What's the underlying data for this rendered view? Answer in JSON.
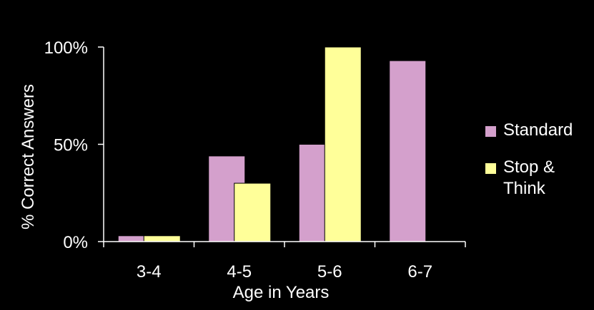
{
  "chart_data": {
    "type": "bar",
    "xlabel": "Age in Years",
    "ylabel": "% Correct Answers",
    "categories": [
      "3-4",
      "4-5",
      "5-6",
      "6-7"
    ],
    "ylim": [
      0,
      100
    ],
    "yticks": [
      0,
      50,
      100
    ],
    "ytick_labels": [
      "0%",
      "50%",
      "100%"
    ],
    "grid": false,
    "legend_position": "right",
    "series": [
      {
        "name": "Standard",
        "color": "#d4a0cc",
        "values": [
          3,
          44,
          50,
          93
        ]
      },
      {
        "name": "Stop & Think",
        "color": "#ffff99",
        "values": [
          3,
          30,
          100,
          null
        ]
      }
    ]
  }
}
